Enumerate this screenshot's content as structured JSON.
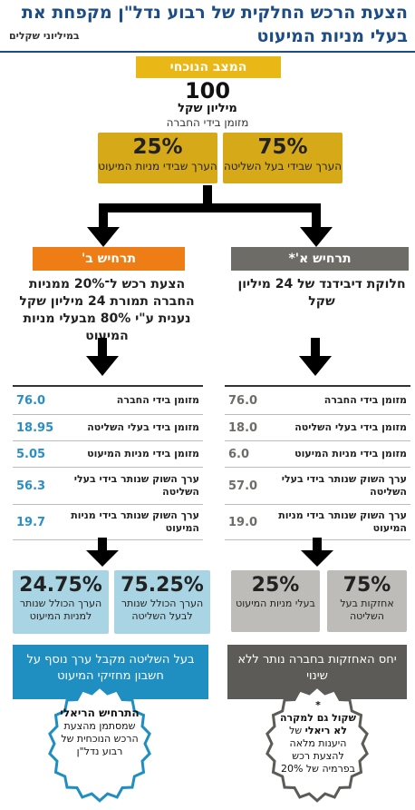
{
  "title": {
    "line1": "הצעת הרכש החלקית של רבוע נדל\"ן מקפחת את",
    "line2": "בעלי מניות המיעוט",
    "subtitle": "במיליוני שקלים"
  },
  "current": {
    "header": "המצב הנוכחי",
    "value": "100",
    "unit": "מיליון שקל",
    "desc": "מזומן בידי החברה",
    "right_box": {
      "pct": "75%",
      "text": "הערך שבידי בעל השליטה"
    },
    "left_box": {
      "pct": "25%",
      "text": "הערך שבידי מניות המיעוט"
    }
  },
  "scenario_a": {
    "header": "תרחיש א'*",
    "text": "חלוקת דיבידנד של 24 מיליון שקל",
    "rows": [
      {
        "label": "מזומן בידי החברה",
        "value": "76.0"
      },
      {
        "label": "מזומן בידי בעלי השליטה",
        "value": "18.0"
      },
      {
        "label": "מזומן בידי מניות המיעוט",
        "value": "6.0"
      },
      {
        "label": "ערך השוק שנותר בידי בעלי השליטה",
        "value": "57.0"
      },
      {
        "label": "ערך השוק שנותר בידי מניות המיעוט",
        "value": "19.0"
      }
    ],
    "box_right": {
      "pct": "75%",
      "text": "אחזקות בעל השליטה"
    },
    "box_left": {
      "pct": "25%",
      "text": "בעלי מניות המיעוט"
    },
    "summary": "יחס האחזקות בחברה נותר ללא שינוי",
    "badge": {
      "star": "*",
      "bold": "שקול גם למקרה לא ריאלי",
      "rest": "של היענות מלאה להצעת רכש בפרמיה של 20%"
    }
  },
  "scenario_b": {
    "header": "תרחיש ב'",
    "text": "הצעת רכש ל־20% ממניות החברה תמורת 24 מיליון שקל נענית ע\"י 80% מבעלי מניות המיעוט",
    "rows": [
      {
        "label": "מזומן בידי החברה",
        "value": "76.0"
      },
      {
        "label": "מזומן בידי בעלי השליטה",
        "value": "18.95"
      },
      {
        "label": "מזומן בידי מניות המיעוט",
        "value": "5.05"
      },
      {
        "label": "ערך השוק שנותר בידי בעלי השליטה",
        "value": "56.3"
      },
      {
        "label": "ערך השוק שנותר בידי מניות המיעוט",
        "value": "19.7"
      }
    ],
    "box_right": {
      "pct": "75.25%",
      "text": "הערך הכולל שנותר לבעל השליטה"
    },
    "box_left": {
      "pct": "24.75%",
      "text": "הערך הכולל שנותר למניות המיעוט"
    },
    "summary": "בעל השליטה מקבל ערך נוסף על חשבון מחזיקי המיעוט",
    "badge": {
      "bold": "התרחיש הריאלי",
      "rest": "שמסתמן מהצעת הרכש הנוכחית של רבוע נדל\"ן"
    }
  },
  "colors": {
    "title_blue": "#1d4d84",
    "gold": "#e9b716",
    "gold_box": "#d6a918",
    "orange_head": "#ee7d16",
    "gray_head": "#6e6c67",
    "teal_value": "#2b8fc4",
    "light_blue_box": "#a9d4e3",
    "light_gray_box": "#bdbcb8",
    "teal_box": "#1f8ec0",
    "dark_gray_box": "#5c5b57"
  }
}
